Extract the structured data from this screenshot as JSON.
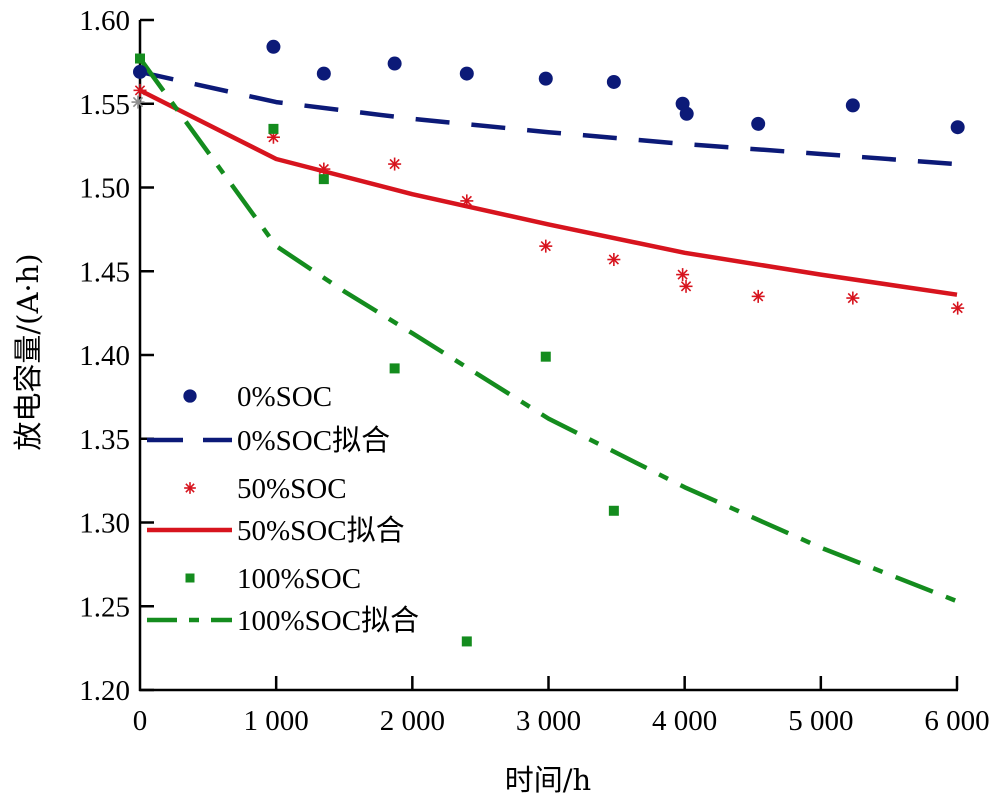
{
  "chart_data": {
    "type": "scatter",
    "title": "",
    "xlabel": "时间/h",
    "ylabel": "放电容量/(A·h)",
    "xlim": [
      0,
      6000
    ],
    "ylim": [
      1.2,
      1.6
    ],
    "x_ticks": [
      0,
      1000,
      2000,
      3000,
      4000,
      5000,
      6000
    ],
    "x_tick_labels": [
      "0",
      "1 000",
      "2 000",
      "3 000",
      "4 000",
      "5 000",
      "6 000"
    ],
    "y_ticks": [
      1.2,
      1.25,
      1.3,
      1.35,
      1.4,
      1.45,
      1.5,
      1.55,
      1.6
    ],
    "y_tick_labels": [
      "1.20",
      "1.25",
      "1.30",
      "1.35",
      "1.40",
      "1.45",
      "1.50",
      "1.55",
      "1.60"
    ],
    "grid": false,
    "legend_position": "bottom-left",
    "series": [
      {
        "name": "0%SOC",
        "kind": "points",
        "marker": "circle",
        "color": "#0c1a78",
        "x": [
          0,
          980,
          1350,
          1870,
          2400,
          2980,
          3480,
          3985,
          4015,
          4540,
          5235,
          6005
        ],
        "y": [
          1.569,
          1.584,
          1.568,
          1.574,
          1.568,
          1.565,
          1.563,
          1.55,
          1.544,
          1.538,
          1.549,
          1.536
        ]
      },
      {
        "name": "0%SOC拟合",
        "kind": "line",
        "dash": "dashed",
        "color": "#0c1a78",
        "x": [
          0,
          1000,
          2000,
          3000,
          4000,
          5000,
          6000
        ],
        "y": [
          1.569,
          1.551,
          1.541,
          1.533,
          1.526,
          1.52,
          1.514
        ]
      },
      {
        "name": "50%SOC",
        "kind": "points",
        "marker": "asterisk",
        "color": "#d7141e",
        "x": [
          0,
          980,
          1350,
          1870,
          2400,
          2980,
          3480,
          3985,
          4010,
          4540,
          5235,
          6005
        ],
        "y": [
          1.558,
          1.53,
          1.511,
          1.514,
          1.492,
          1.465,
          1.457,
          1.448,
          1.441,
          1.435,
          1.434,
          1.428
        ]
      },
      {
        "name": "50%SOC拟合",
        "kind": "line",
        "dash": "solid",
        "color": "#d7141e",
        "x": [
          0,
          1000,
          2000,
          3000,
          4000,
          5000,
          6000
        ],
        "y": [
          1.558,
          1.517,
          1.496,
          1.478,
          1.461,
          1.448,
          1.436
        ]
      },
      {
        "name": "100%SOC",
        "kind": "points",
        "marker": "square",
        "color": "#148c1e",
        "x": [
          0,
          980,
          1350,
          1870,
          2400,
          2980,
          3480
        ],
        "y": [
          1.577,
          1.535,
          1.505,
          1.392,
          1.229,
          1.399,
          1.307
        ]
      },
      {
        "name": "100%SOC拟合",
        "kind": "line",
        "dash": "dash-dot",
        "color": "#148c1e",
        "x": [
          0,
          1000,
          1500,
          2000,
          3000,
          4000,
          5000,
          6000
        ],
        "y": [
          1.577,
          1.465,
          1.438,
          1.413,
          1.362,
          1.321,
          1.285,
          1.253
        ]
      }
    ],
    "extra_points": [
      {
        "name": "gray-marker",
        "marker": "asterisk",
        "color": "#8c8c8c",
        "x": 0,
        "y": 1.551
      }
    ]
  }
}
